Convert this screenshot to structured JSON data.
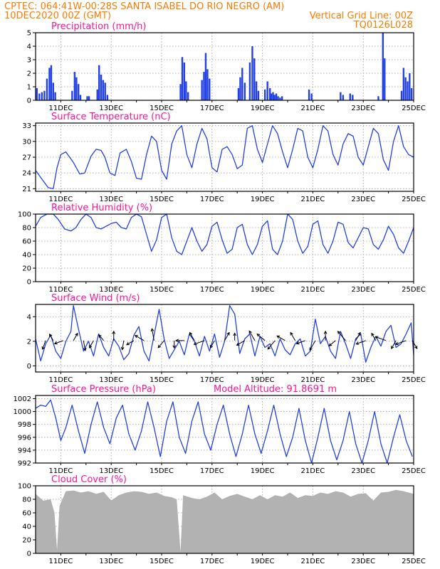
{
  "header": {
    "line1_left": "CPTEC:   064:41W-00:28S   SANTA ISABEL DO RIO NEGRO (AM)",
    "line2_left": "10DEC2020 00Z (GMT)",
    "line2_right": "Vertical Grid Line: 00Z",
    "line3_right": "TQ0126L028"
  },
  "x_axis": {
    "start_day": 10,
    "end_day": 25,
    "tick_labels": [
      "11DEC",
      "13DEC",
      "15DEC",
      "17DEC",
      "19DEC",
      "21DEC",
      "23DEC",
      "25DEC"
    ],
    "tick_days": [
      11,
      13,
      15,
      17,
      19,
      21,
      23,
      25
    ]
  },
  "colors": {
    "header": "#ff7a00",
    "panel_title": "#ff1493",
    "series": "#2341e6",
    "cloud": "#b2b2b2",
    "wind_arrow": "#000000",
    "grid": "#9a9a9a"
  },
  "chart_data": [
    {
      "id": "precip",
      "type": "bar",
      "title": "Precipitation (mm/h)",
      "ylim": [
        0,
        5
      ],
      "yticks": [
        0,
        1,
        2,
        3,
        4,
        5
      ],
      "grid": true,
      "x_unit": "day of month (Dec 2020)",
      "x": [
        10.05,
        10.15,
        10.25,
        10.35,
        10.45,
        10.55,
        10.62,
        10.7,
        10.78,
        11.45,
        11.55,
        11.62,
        11.7,
        11.78,
        12.05,
        12.12,
        12.45,
        12.52,
        12.6,
        12.68,
        12.76,
        12.85,
        15.75,
        15.82,
        15.9,
        15.97,
        16.05,
        16.6,
        16.68,
        16.75,
        16.82,
        16.9,
        18.05,
        18.12,
        18.2,
        18.3,
        18.5,
        18.6,
        18.68,
        18.76,
        18.84,
        19.1,
        19.2,
        19.3,
        19.35,
        19.42,
        19.48,
        19.55,
        19.62,
        19.7,
        19.78,
        20.85,
        20.95,
        22.1,
        22.2,
        22.48,
        22.58,
        23.6,
        23.78,
        23.85,
        24.52,
        24.6,
        24.68,
        24.76,
        24.84,
        24.92
      ],
      "values": [
        0.9,
        0.5,
        0.6,
        0.7,
        1.6,
        2.4,
        2.6,
        1.3,
        0.6,
        0.7,
        2.1,
        1.7,
        1.2,
        0.4,
        0.3,
        0.3,
        0.8,
        2.6,
        1.9,
        1.5,
        1.3,
        0.4,
        1.2,
        3.2,
        2.8,
        1.4,
        0.6,
        1.5,
        2.1,
        3.5,
        2.3,
        1.6,
        0.9,
        1.7,
        2.4,
        1.3,
        2.8,
        4.0,
        3.1,
        1.4,
        0.7,
        0.8,
        1.4,
        0.9,
        0.5,
        0.6,
        0.4,
        0.5,
        0.3,
        0.2,
        0.3,
        0.8,
        0.5,
        0.6,
        0.4,
        0.5,
        0.4,
        0.3,
        5.0,
        3.1,
        0.7,
        2.4,
        1.7,
        1.4,
        2.0,
        0.9
      ]
    },
    {
      "id": "temp",
      "type": "line",
      "title": "Surface Temperature (nC)",
      "ylim": [
        20.5,
        33.5
      ],
      "yticks": [
        21,
        24,
        27,
        30,
        33
      ],
      "grid": true,
      "x": [
        10.0,
        10.3,
        10.5,
        10.7,
        10.85,
        11.0,
        11.2,
        11.5,
        11.75,
        11.95,
        12.2,
        12.4,
        12.6,
        12.75,
        12.95,
        13.15,
        13.35,
        13.6,
        13.8,
        14.0,
        14.2,
        14.4,
        14.6,
        14.8,
        15.0,
        15.2,
        15.4,
        15.6,
        15.8,
        16.0,
        16.2,
        16.4,
        16.6,
        16.8,
        17.0,
        17.2,
        17.4,
        17.6,
        17.8,
        18.0,
        18.2,
        18.4,
        18.6,
        18.8,
        19.0,
        19.2,
        19.4,
        19.6,
        19.8,
        20.0,
        20.2,
        20.4,
        20.6,
        20.8,
        21.0,
        21.2,
        21.4,
        21.6,
        21.8,
        22.0,
        22.2,
        22.4,
        22.6,
        22.8,
        23.0,
        23.2,
        23.4,
        23.6,
        23.8,
        24.0,
        24.2,
        24.4,
        24.6,
        24.8,
        25.0
      ],
      "values": [
        24.5,
        22.5,
        21.2,
        21.0,
        25.0,
        27.5,
        28.0,
        26.0,
        23.8,
        24.0,
        27.2,
        28.5,
        28.3,
        27.0,
        24.0,
        23.5,
        27.8,
        28.5,
        26.2,
        23.0,
        22.8,
        27.5,
        31.0,
        30.0,
        24.5,
        22.8,
        29.5,
        32.0,
        33.0,
        27.5,
        25.0,
        29.5,
        32.5,
        30.5,
        25.0,
        24.2,
        28.5,
        29.0,
        27.5,
        24.8,
        25.5,
        32.5,
        33.0,
        28.5,
        26.0,
        29.5,
        33.0,
        31.5,
        28.0,
        25.0,
        28.5,
        32.5,
        32.0,
        27.0,
        25.0,
        28.5,
        33.0,
        32.0,
        27.5,
        25.5,
        29.5,
        31.5,
        31.0,
        27.0,
        25.5,
        29.0,
        32.5,
        31.5,
        26.5,
        24.5,
        30.0,
        33.0,
        29.0,
        27.5,
        27.0
      ]
    },
    {
      "id": "rh",
      "type": "line",
      "title": "Relative Humidity (%)",
      "ylim": [
        0,
        100
      ],
      "yticks": [
        0,
        20,
        40,
        60,
        80,
        100
      ],
      "grid": true,
      "x": [
        10.0,
        10.2,
        10.45,
        10.7,
        10.9,
        11.15,
        11.4,
        11.6,
        11.8,
        12.0,
        12.2,
        12.4,
        12.6,
        12.8,
        13.0,
        13.2,
        13.4,
        13.6,
        13.8,
        14.0,
        14.2,
        14.4,
        14.6,
        14.8,
        15.0,
        15.2,
        15.4,
        15.6,
        15.8,
        16.0,
        16.2,
        16.4,
        16.6,
        16.8,
        17.0,
        17.2,
        17.4,
        17.6,
        17.8,
        18.0,
        18.2,
        18.4,
        18.6,
        18.8,
        19.0,
        19.2,
        19.4,
        19.6,
        19.8,
        20.0,
        20.2,
        20.4,
        20.6,
        20.8,
        21.0,
        21.2,
        21.4,
        21.6,
        21.8,
        22.0,
        22.2,
        22.4,
        22.6,
        22.8,
        23.0,
        23.2,
        23.4,
        23.6,
        23.8,
        24.0,
        24.2,
        24.4,
        24.6,
        24.8,
        25.0
      ],
      "values": [
        82,
        95,
        100,
        100,
        92,
        78,
        75,
        80,
        92,
        100,
        95,
        80,
        78,
        82,
        86,
        88,
        80,
        78,
        95,
        100,
        96,
        70,
        45,
        62,
        95,
        100,
        65,
        45,
        40,
        60,
        80,
        60,
        45,
        55,
        82,
        88,
        62,
        42,
        48,
        80,
        85,
        55,
        40,
        55,
        82,
        90,
        48,
        40,
        60,
        100,
        92,
        60,
        42,
        52,
        85,
        90,
        55,
        42,
        60,
        88,
        85,
        58,
        50,
        65,
        80,
        78,
        55,
        48,
        62,
        82,
        70,
        50,
        42,
        60,
        80
      ]
    },
    {
      "id": "wind",
      "type": "line",
      "title": "Surface Wind (m/s)",
      "ylim": [
        -0.5,
        5.0
      ],
      "yticks": [
        0,
        2,
        4
      ],
      "grid": true,
      "x": [
        10.0,
        10.2,
        10.4,
        10.6,
        10.8,
        11.0,
        11.2,
        11.4,
        11.5,
        11.7,
        11.9,
        12.1,
        12.3,
        12.5,
        12.7,
        12.9,
        13.1,
        13.3,
        13.5,
        13.7,
        13.9,
        14.1,
        14.3,
        14.5,
        14.7,
        14.9,
        15.1,
        15.3,
        15.5,
        15.7,
        15.9,
        16.1,
        16.3,
        16.5,
        16.7,
        16.9,
        17.1,
        17.3,
        17.5,
        17.7,
        17.9,
        18.1,
        18.3,
        18.5,
        18.7,
        18.9,
        19.1,
        19.3,
        19.5,
        19.7,
        19.9,
        20.1,
        20.3,
        20.5,
        20.7,
        20.9,
        21.1,
        21.3,
        21.5,
        21.7,
        21.9,
        22.1,
        22.3,
        22.5,
        22.7,
        22.9,
        23.1,
        23.3,
        23.5,
        23.7,
        23.9,
        24.1,
        24.3,
        24.5,
        24.7,
        24.9,
        25.0
      ],
      "values": [
        2.2,
        0.4,
        1.8,
        2.5,
        1.2,
        0.6,
        2.0,
        2.8,
        4.9,
        3.0,
        1.2,
        2.0,
        0.8,
        2.6,
        1.5,
        0.8,
        2.2,
        1.6,
        0.5,
        1.0,
        2.5,
        3.2,
        1.2,
        0.4,
        2.5,
        4.6,
        2.2,
        0.6,
        1.3,
        2.0,
        0.9,
        2.6,
        2.0,
        0.8,
        2.4,
        1.2,
        2.6,
        0.7,
        2.0,
        4.9,
        4.2,
        1.0,
        2.2,
        2.6,
        0.8,
        2.4,
        1.5,
        1.8,
        0.8,
        2.2,
        1.3,
        0.9,
        1.8,
        2.2,
        0.8,
        1.2,
        3.8,
        1.8,
        2.4,
        1.2,
        0.6,
        2.8,
        1.8,
        0.6,
        2.2,
        2.6,
        0.3,
        1.5,
        2.4,
        1.6,
        2.8,
        3.3,
        1.5,
        1.8,
        2.6,
        3.5,
        0.9
      ]
    },
    {
      "id": "pressure",
      "type": "line",
      "title": "Surface Pressure (hPa)",
      "annotation": "Model Altitude: 91.8691 m",
      "ylim": [
        992,
        1002.5
      ],
      "yticks": [
        992,
        994,
        996,
        998,
        1000,
        1002
      ],
      "grid": true,
      "x": [
        10.0,
        10.2,
        10.4,
        10.6,
        10.8,
        11.0,
        11.2,
        11.45,
        11.7,
        11.95,
        12.2,
        12.45,
        12.7,
        12.95,
        13.2,
        13.45,
        13.7,
        13.95,
        14.2,
        14.45,
        14.7,
        14.95,
        15.2,
        15.45,
        15.7,
        15.95,
        16.2,
        16.45,
        16.7,
        16.95,
        17.2,
        17.45,
        17.7,
        17.95,
        18.2,
        18.45,
        18.7,
        18.95,
        19.2,
        19.45,
        19.7,
        19.95,
        20.2,
        20.45,
        20.7,
        20.95,
        21.2,
        21.45,
        21.7,
        21.95,
        22.2,
        22.45,
        22.7,
        22.95,
        23.2,
        23.45,
        23.7,
        23.95,
        24.2,
        24.45,
        24.7,
        24.95
      ],
      "values": [
        1000.5,
        1001.0,
        1000.8,
        1001.8,
        999.0,
        995.5,
        997.5,
        1001.0,
        997.0,
        993.5,
        998.0,
        1001.5,
        997.5,
        995.0,
        999.0,
        1001.0,
        996.5,
        994.0,
        997.0,
        1001.5,
        997.5,
        993.0,
        998.5,
        1001.5,
        996.0,
        993.5,
        998.5,
        1001.5,
        996.5,
        994.0,
        998.0,
        1001.0,
        996.5,
        993.0,
        996.5,
        1001.0,
        996.5,
        993.5,
        997.0,
        1001.0,
        996.5,
        993.0,
        996.0,
        1000.5,
        995.5,
        992.0,
        996.0,
        1000.5,
        995.5,
        992.5,
        995.5,
        1000.0,
        995.0,
        992.0,
        995.5,
        1000.0,
        995.0,
        992.0,
        996.0,
        999.5,
        995.5,
        993.0
      ]
    },
    {
      "id": "cloud",
      "type": "area",
      "title": "Cloud Cover (%)",
      "ylim": [
        0,
        100
      ],
      "yticks": [
        0,
        20,
        40,
        60,
        80,
        100
      ],
      "grid": true,
      "x": [
        10.0,
        10.3,
        10.6,
        10.75,
        10.85,
        10.95,
        11.2,
        11.5,
        11.8,
        12.1,
        12.4,
        12.7,
        13.0,
        13.3,
        13.6,
        13.9,
        14.2,
        14.5,
        14.8,
        15.1,
        15.4,
        15.6,
        15.75,
        15.85,
        16.2,
        16.5,
        16.8,
        17.1,
        17.4,
        17.7,
        18.0,
        18.3,
        18.6,
        18.9,
        19.2,
        19.5,
        19.8,
        20.1,
        20.4,
        20.7,
        21.0,
        21.3,
        21.6,
        21.9,
        22.2,
        22.5,
        22.8,
        23.1,
        23.4,
        23.7,
        24.0,
        24.3,
        24.6,
        25.0
      ],
      "values": [
        88,
        78,
        80,
        60,
        5,
        70,
        92,
        93,
        90,
        92,
        88,
        91,
        78,
        86,
        90,
        92,
        91,
        88,
        90,
        85,
        83,
        80,
        2,
        86,
        82,
        80,
        84,
        90,
        80,
        85,
        88,
        84,
        80,
        86,
        80,
        86,
        84,
        90,
        82,
        86,
        85,
        90,
        88,
        92,
        90,
        84,
        88,
        89,
        78,
        90,
        91,
        94,
        92,
        88
      ]
    },
    {
      "id": "wind_arrows",
      "type": "vector",
      "x": [
        10.4,
        10.7,
        11.1,
        11.5,
        11.9,
        12.3,
        12.7,
        13.1,
        13.5,
        13.9,
        14.3,
        14.7,
        15.1,
        15.5,
        15.9,
        16.3,
        16.7,
        17.1,
        17.5,
        17.9,
        18.3,
        18.7,
        19.1,
        19.5,
        19.9,
        20.3,
        20.7,
        21.1,
        21.5,
        21.9,
        22.3,
        22.7,
        23.1,
        23.5,
        23.9,
        24.3,
        24.7,
        24.95
      ],
      "angle_deg": [
        250,
        120,
        200,
        60,
        280,
        240,
        130,
        90,
        260,
        210,
        150,
        100,
        230,
        270,
        180,
        120,
        200,
        240,
        60,
        90,
        210,
        120,
        140,
        230,
        150,
        120,
        200,
        240,
        90,
        220,
        130,
        60,
        200,
        120,
        160,
        240,
        200,
        300
      ],
      "length": [
        1.0,
        0.8,
        1.0,
        0.9,
        1.1,
        0.9,
        0.8,
        1.0,
        1.0,
        0.9,
        1.1,
        1.3,
        1.0,
        0.8,
        0.9,
        1.0,
        1.2,
        0.9,
        1.0,
        0.8,
        1.0,
        1.2,
        1.1,
        1.2,
        1.0,
        1.0,
        1.0,
        1.2,
        1.0,
        0.9,
        1.3,
        1.0,
        1.1,
        0.9,
        1.2,
        1.0,
        1.2,
        1.0
      ]
    }
  ]
}
